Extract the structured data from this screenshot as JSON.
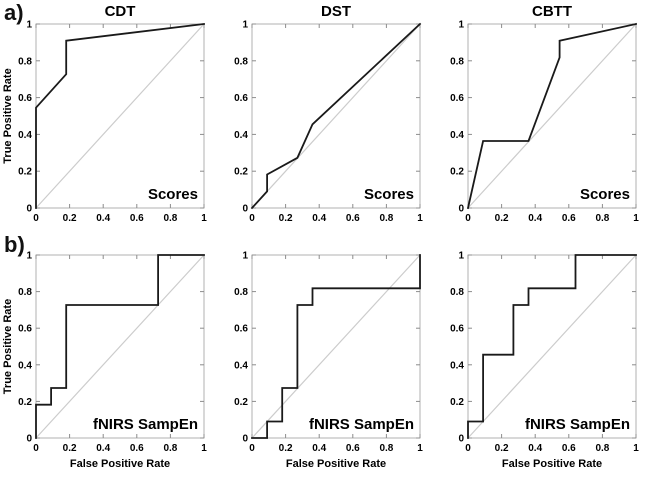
{
  "page": {
    "background": "#ffffff"
  },
  "panel_labels": {
    "a": "a)",
    "b": "b)"
  },
  "colors": {
    "curve": "#1a1a1a",
    "diagonal": "#cccccc",
    "box": "#b0b0b0",
    "tick": "#8c8c8c",
    "text": "#000000"
  },
  "chart_data": [
    {
      "id": "a-cdt",
      "type": "line",
      "panel": "a",
      "title": "CDT",
      "annotation": "Scores",
      "xlabel": "",
      "ylabel": "True Positive Rate",
      "xlim": [
        0,
        1
      ],
      "ylim": [
        0,
        1
      ],
      "xticks": [
        0,
        0.2,
        0.4,
        0.6,
        0.8,
        1
      ],
      "yticks": [
        0,
        0.2,
        0.4,
        0.6,
        0.8,
        1
      ],
      "xtick_labels": [
        "0",
        "0.2",
        "0.4",
        "0.6",
        "0.8",
        "1"
      ],
      "ytick_labels": [
        "0",
        "0.2",
        "0.4",
        "0.6",
        "0.8",
        "1"
      ],
      "grid": false,
      "diagonal_reference": true,
      "series": [
        {
          "name": "ROC curve",
          "x": [
            0,
            0,
            0.18,
            0.18,
            1
          ],
          "y": [
            0,
            0.545,
            0.727,
            0.909,
            1
          ]
        }
      ]
    },
    {
      "id": "a-dst",
      "type": "line",
      "panel": "a",
      "title": "DST",
      "annotation": "Scores",
      "xlabel": "",
      "ylabel": "",
      "xlim": [
        0,
        1
      ],
      "ylim": [
        0,
        1
      ],
      "xticks": [
        0,
        0.2,
        0.4,
        0.6,
        0.8,
        1
      ],
      "yticks": [
        0,
        0.2,
        0.4,
        0.6,
        0.8,
        1
      ],
      "xtick_labels": [
        "0",
        "0.2",
        "0.4",
        "0.6",
        "0.8",
        "1"
      ],
      "ytick_labels": [
        "0",
        "0.2",
        "0.4",
        "0.6",
        "0.8",
        "1"
      ],
      "grid": false,
      "diagonal_reference": true,
      "series": [
        {
          "name": "ROC curve",
          "x": [
            0,
            0.09,
            0.09,
            0.27,
            0.36,
            1
          ],
          "y": [
            0,
            0.09,
            0.182,
            0.273,
            0.455,
            1
          ]
        }
      ]
    },
    {
      "id": "a-cbtt",
      "type": "line",
      "panel": "a",
      "title": "CBTT",
      "annotation": "Scores",
      "xlabel": "",
      "ylabel": "",
      "xlim": [
        0,
        1
      ],
      "ylim": [
        0,
        1
      ],
      "xticks": [
        0,
        0.2,
        0.4,
        0.6,
        0.8,
        1
      ],
      "yticks": [
        0,
        0.2,
        0.4,
        0.6,
        0.8,
        1
      ],
      "xtick_labels": [
        "0",
        "0.2",
        "0.4",
        "0.6",
        "0.8",
        "1"
      ],
      "ytick_labels": [
        "0",
        "0.2",
        "0.4",
        "0.6",
        "0.8",
        "1"
      ],
      "grid": false,
      "diagonal_reference": true,
      "series": [
        {
          "name": "ROC curve",
          "x": [
            0,
            0.09,
            0.36,
            0.545,
            0.545,
            1
          ],
          "y": [
            0,
            0.364,
            0.364,
            0.818,
            0.909,
            1
          ]
        }
      ]
    },
    {
      "id": "b-cdt",
      "type": "line",
      "panel": "b",
      "title": "",
      "annotation": "fNIRS SampEn",
      "xlabel": "False Positive Rate",
      "ylabel": "True Positive Rate",
      "xlim": [
        0,
        1
      ],
      "ylim": [
        0,
        1
      ],
      "xticks": [
        0,
        0.2,
        0.4,
        0.6,
        0.8,
        1
      ],
      "yticks": [
        0,
        0.2,
        0.4,
        0.6,
        0.8,
        1
      ],
      "xtick_labels": [
        "0",
        "0.2",
        "0.4",
        "0.6",
        "0.8",
        "1"
      ],
      "ytick_labels": [
        "0",
        "0.2",
        "0.4",
        "0.6",
        "0.8",
        "1"
      ],
      "grid": false,
      "diagonal_reference": true,
      "series": [
        {
          "name": "ROC curve",
          "x": [
            0,
            0,
            0.09,
            0.09,
            0.18,
            0.18,
            0.727,
            0.727,
            1
          ],
          "y": [
            0,
            0.182,
            0.182,
            0.273,
            0.273,
            0.727,
            0.727,
            1,
            1
          ]
        }
      ]
    },
    {
      "id": "b-dst",
      "type": "line",
      "panel": "b",
      "title": "",
      "annotation": "fNIRS SampEn",
      "xlabel": "False Positive Rate",
      "ylabel": "",
      "xlim": [
        0,
        1
      ],
      "ylim": [
        0,
        1
      ],
      "xticks": [
        0,
        0.2,
        0.4,
        0.6,
        0.8,
        1
      ],
      "yticks": [
        0,
        0.2,
        0.4,
        0.6,
        0.8,
        1
      ],
      "xtick_labels": [
        "0",
        "0.2",
        "0.4",
        "0.6",
        "0.8",
        "1"
      ],
      "ytick_labels": [
        "0",
        "0.2",
        "0.4",
        "0.6",
        "0.8",
        "1"
      ],
      "grid": false,
      "diagonal_reference": true,
      "series": [
        {
          "name": "ROC curve",
          "x": [
            0,
            0.09,
            0.09,
            0.18,
            0.18,
            0.27,
            0.27,
            0.36,
            0.36,
            1,
            1
          ],
          "y": [
            0,
            0,
            0.09,
            0.09,
            0.273,
            0.273,
            0.727,
            0.727,
            0.818,
            0.818,
            1
          ]
        }
      ]
    },
    {
      "id": "b-cbtt",
      "type": "line",
      "panel": "b",
      "title": "",
      "annotation": "fNIRS SampEn",
      "xlabel": "False Positive Rate",
      "ylabel": "",
      "xlim": [
        0,
        1
      ],
      "ylim": [
        0,
        1
      ],
      "xticks": [
        0,
        0.2,
        0.4,
        0.6,
        0.8,
        1
      ],
      "yticks": [
        0,
        0.2,
        0.4,
        0.6,
        0.8,
        1
      ],
      "xtick_labels": [
        "0",
        "0.2",
        "0.4",
        "0.6",
        "0.8",
        "1"
      ],
      "ytick_labels": [
        "0",
        "0.2",
        "0.4",
        "0.6",
        "0.8",
        "1"
      ],
      "grid": false,
      "diagonal_reference": true,
      "series": [
        {
          "name": "ROC curve",
          "x": [
            0,
            0,
            0.09,
            0.09,
            0.27,
            0.27,
            0.36,
            0.36,
            0.64,
            0.64,
            1
          ],
          "y": [
            0,
            0.09,
            0.09,
            0.455,
            0.455,
            0.727,
            0.727,
            0.818,
            0.818,
            1,
            1
          ]
        }
      ]
    }
  ]
}
